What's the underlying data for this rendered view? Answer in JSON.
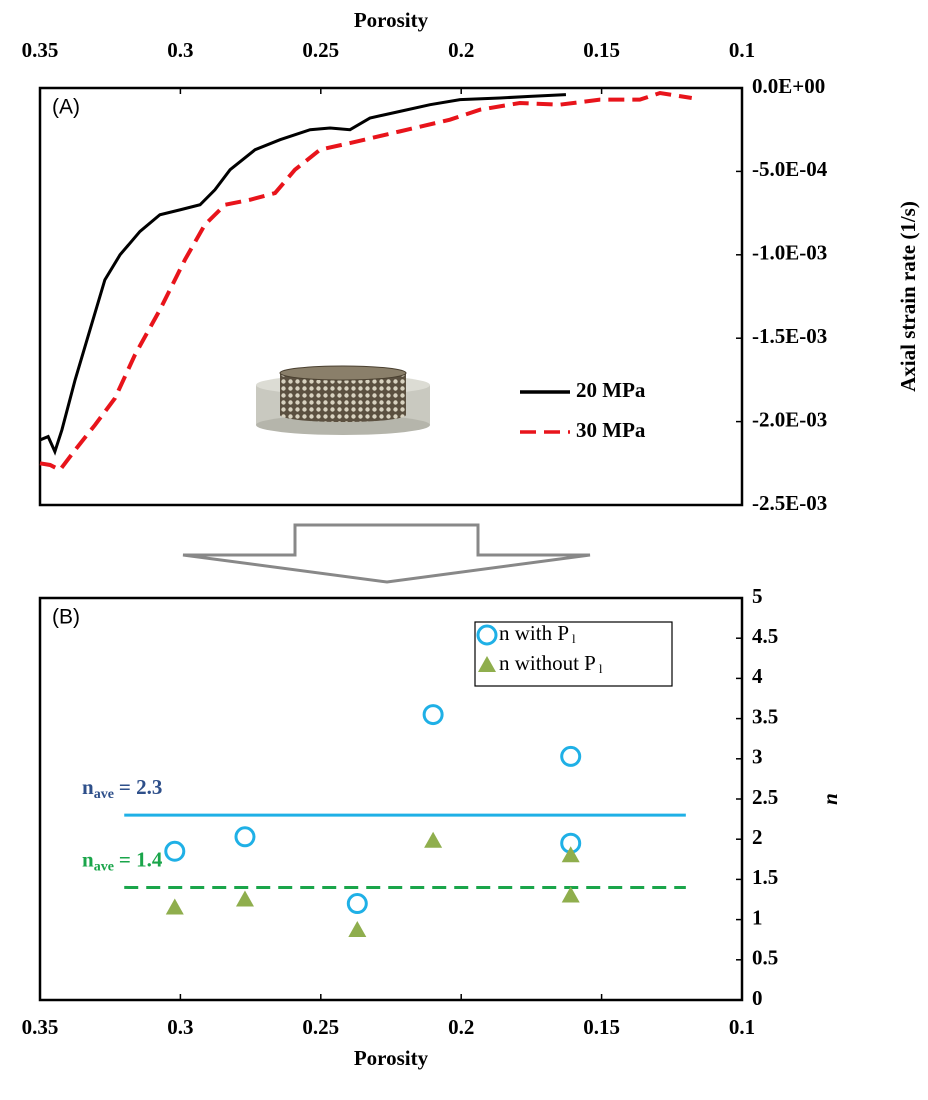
{
  "chart_data": [
    {
      "type": "line",
      "panel_label": "(A)",
      "xlabel": "Porosity",
      "xaxis_position": "top",
      "ylabel": "Axial strain rate (1/s)",
      "yaxis_position": "right",
      "xlim": [
        0.35,
        0.1
      ],
      "xticks": [
        0.35,
        0.3,
        0.25,
        0.2,
        0.15,
        0.1
      ],
      "ylim": [
        -0.0025,
        0
      ],
      "yticks": [
        {
          "value": 0,
          "label": "0.0E+00"
        },
        {
          "value": -0.0005,
          "label": "-5.0E-04"
        },
        {
          "value": -0.001,
          "label": "-1.0E-03"
        },
        {
          "value": -0.0015,
          "label": "-1.5E-03"
        },
        {
          "value": -0.002,
          "label": "-2.0E-03"
        },
        {
          "value": -0.0025,
          "label": "-2.5E-03"
        }
      ],
      "series": [
        {
          "name": "20 MPa",
          "color": "#000000",
          "dash": "solid",
          "x": [
            0.35,
            0.3471,
            0.3447,
            0.3422,
            0.3375,
            0.3322,
            0.3269,
            0.3215,
            0.3144,
            0.3073,
            0.3,
            0.293,
            0.2877,
            0.2823,
            0.2734,
            0.2645,
            0.2538,
            0.2467,
            0.2396,
            0.2325,
            0.2218,
            0.2111,
            0.2004,
            0.1862,
            0.1755,
            0.1627
          ],
          "values": [
            -0.00211,
            -0.00209,
            -0.00218,
            -0.00205,
            -0.00175,
            -0.00145,
            -0.00115,
            -0.001,
            -0.00086,
            -0.00076,
            -0.00073,
            -0.0007,
            -0.00061,
            -0.00049,
            -0.00037,
            -0.00031,
            -0.00025,
            -0.00024,
            -0.00025,
            -0.00018,
            -0.00014,
            -0.0001,
            -7e-05,
            -6e-05,
            -5e-05,
            -4e-05
          ]
        },
        {
          "name": "30 MPa",
          "color": "#e8141b",
          "dash": "dashed",
          "x": [
            0.35,
            0.3464,
            0.3429,
            0.3375,
            0.3304,
            0.3233,
            0.3162,
            0.3073,
            0.2984,
            0.2913,
            0.2841,
            0.2752,
            0.2663,
            0.2592,
            0.2503,
            0.2396,
            0.2218,
            0.204,
            0.1933,
            0.1791,
            0.1649,
            0.1506,
            0.1364,
            0.1292,
            0.1179
          ],
          "values": [
            -0.00225,
            -0.00226,
            -0.00229,
            -0.00217,
            -0.00202,
            -0.00186,
            -0.0016,
            -0.00133,
            -0.00103,
            -0.00082,
            -0.0007,
            -0.00067,
            -0.00063,
            -0.00049,
            -0.00037,
            -0.00033,
            -0.00026,
            -0.00019,
            -0.00013,
            -9e-05,
            -0.0001,
            -7e-05,
            -7e-05,
            -3e-05,
            -6e-05
          ]
        }
      ]
    },
    {
      "type": "scatter",
      "panel_label": "(B)",
      "xlabel": "Porosity",
      "xaxis_position": "bottom",
      "ylabel": "n",
      "yaxis_position": "right",
      "xlim": [
        0.35,
        0.1
      ],
      "xticks": [
        0.35,
        0.3,
        0.25,
        0.2,
        0.15,
        0.1
      ],
      "ylim": [
        0,
        5
      ],
      "yticks": [
        0,
        0.5,
        1,
        1.5,
        2,
        2.5,
        3,
        3.5,
        4,
        4.5,
        5
      ],
      "series": [
        {
          "name": "n with P",
          "name_sub": "l",
          "marker": "circle",
          "color": "#1fb0e6",
          "x": [
            0.302,
            0.277,
            0.237,
            0.21,
            0.161,
            0.161
          ],
          "values": [
            1.85,
            2.03,
            1.2,
            3.55,
            3.03,
            1.95
          ]
        },
        {
          "name": "n without P",
          "name_sub": "l",
          "marker": "triangle",
          "color": "#8fae4d",
          "x": [
            0.302,
            0.277,
            0.237,
            0.21,
            0.161,
            0.161
          ],
          "values": [
            1.15,
            1.25,
            0.87,
            1.98,
            1.8,
            1.3
          ]
        }
      ],
      "hlines": [
        {
          "y": 2.3,
          "x": [
            0.32,
            0.12
          ],
          "color": "#1fb0e6",
          "dash": "solid",
          "label_color": "#2e4f8a",
          "label": "n",
          "label_sub": "ave",
          "label_rest": "= 2.3"
        },
        {
          "y": 1.4,
          "x": [
            0.32,
            0.12
          ],
          "color": "#1aa54a",
          "dash": "dashed",
          "label_color": "#1aa54a",
          "label": "n",
          "label_sub": "ave",
          "label_rest": "= 1.4"
        }
      ]
    }
  ]
}
